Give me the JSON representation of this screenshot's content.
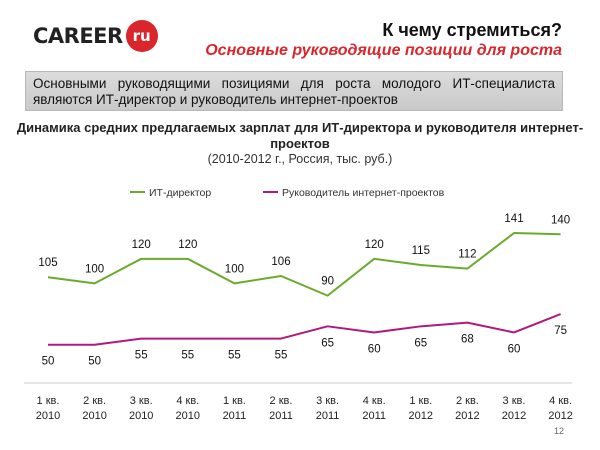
{
  "header": {
    "logo_text": "CAREER",
    "logo_badge": "ru",
    "title": "К чему стремиться?",
    "subtitle": "Основные руководящие позиции для роста"
  },
  "summary": "Основными руководящими позициями для роста молодого ИТ-специалиста являются ИТ-директор и руководитель интернет-проектов",
  "page_number": "12",
  "colors": {
    "accent_red": "#d8262c",
    "it_director": "#6aaa2e",
    "internet_pm": "#b0197d"
  },
  "chart_data": {
    "type": "line",
    "title": "Динамика средних предлагаемых зарплат для ИТ-директора и руководителя интернет-проектов",
    "subtitle": "(2010-2012 г., Россия, тыс. руб.)",
    "xlabel": "",
    "ylabel": "",
    "grid": false,
    "legend": "top-center",
    "categories": [
      [
        "1 кв.",
        "2010"
      ],
      [
        "2 кв.",
        "2010"
      ],
      [
        "3 кв.",
        "2010"
      ],
      [
        "4 кв.",
        "2010"
      ],
      [
        "1 кв.",
        "2011"
      ],
      [
        "2 кв.",
        "2011"
      ],
      [
        "3 кв.",
        "2011"
      ],
      [
        "4 кв.",
        "2011"
      ],
      [
        "1 кв.",
        "2012"
      ],
      [
        "2 кв.",
        "2012"
      ],
      [
        "3 кв.",
        "2012"
      ],
      [
        "4 кв.",
        "2012"
      ]
    ],
    "ylim": [
      40,
      150
    ],
    "series": [
      {
        "name": "ИТ-директор",
        "color": "#6aaa2e",
        "label_position": "above",
        "values": [
          105,
          100,
          120,
          120,
          100,
          106,
          90,
          120,
          115,
          112,
          141,
          140
        ]
      },
      {
        "name": "Руководитель интернет-проектов",
        "color": "#b0197d",
        "label_position": "below",
        "values": [
          50,
          50,
          55,
          55,
          55,
          55,
          65,
          60,
          65,
          68,
          60,
          75
        ]
      }
    ]
  }
}
